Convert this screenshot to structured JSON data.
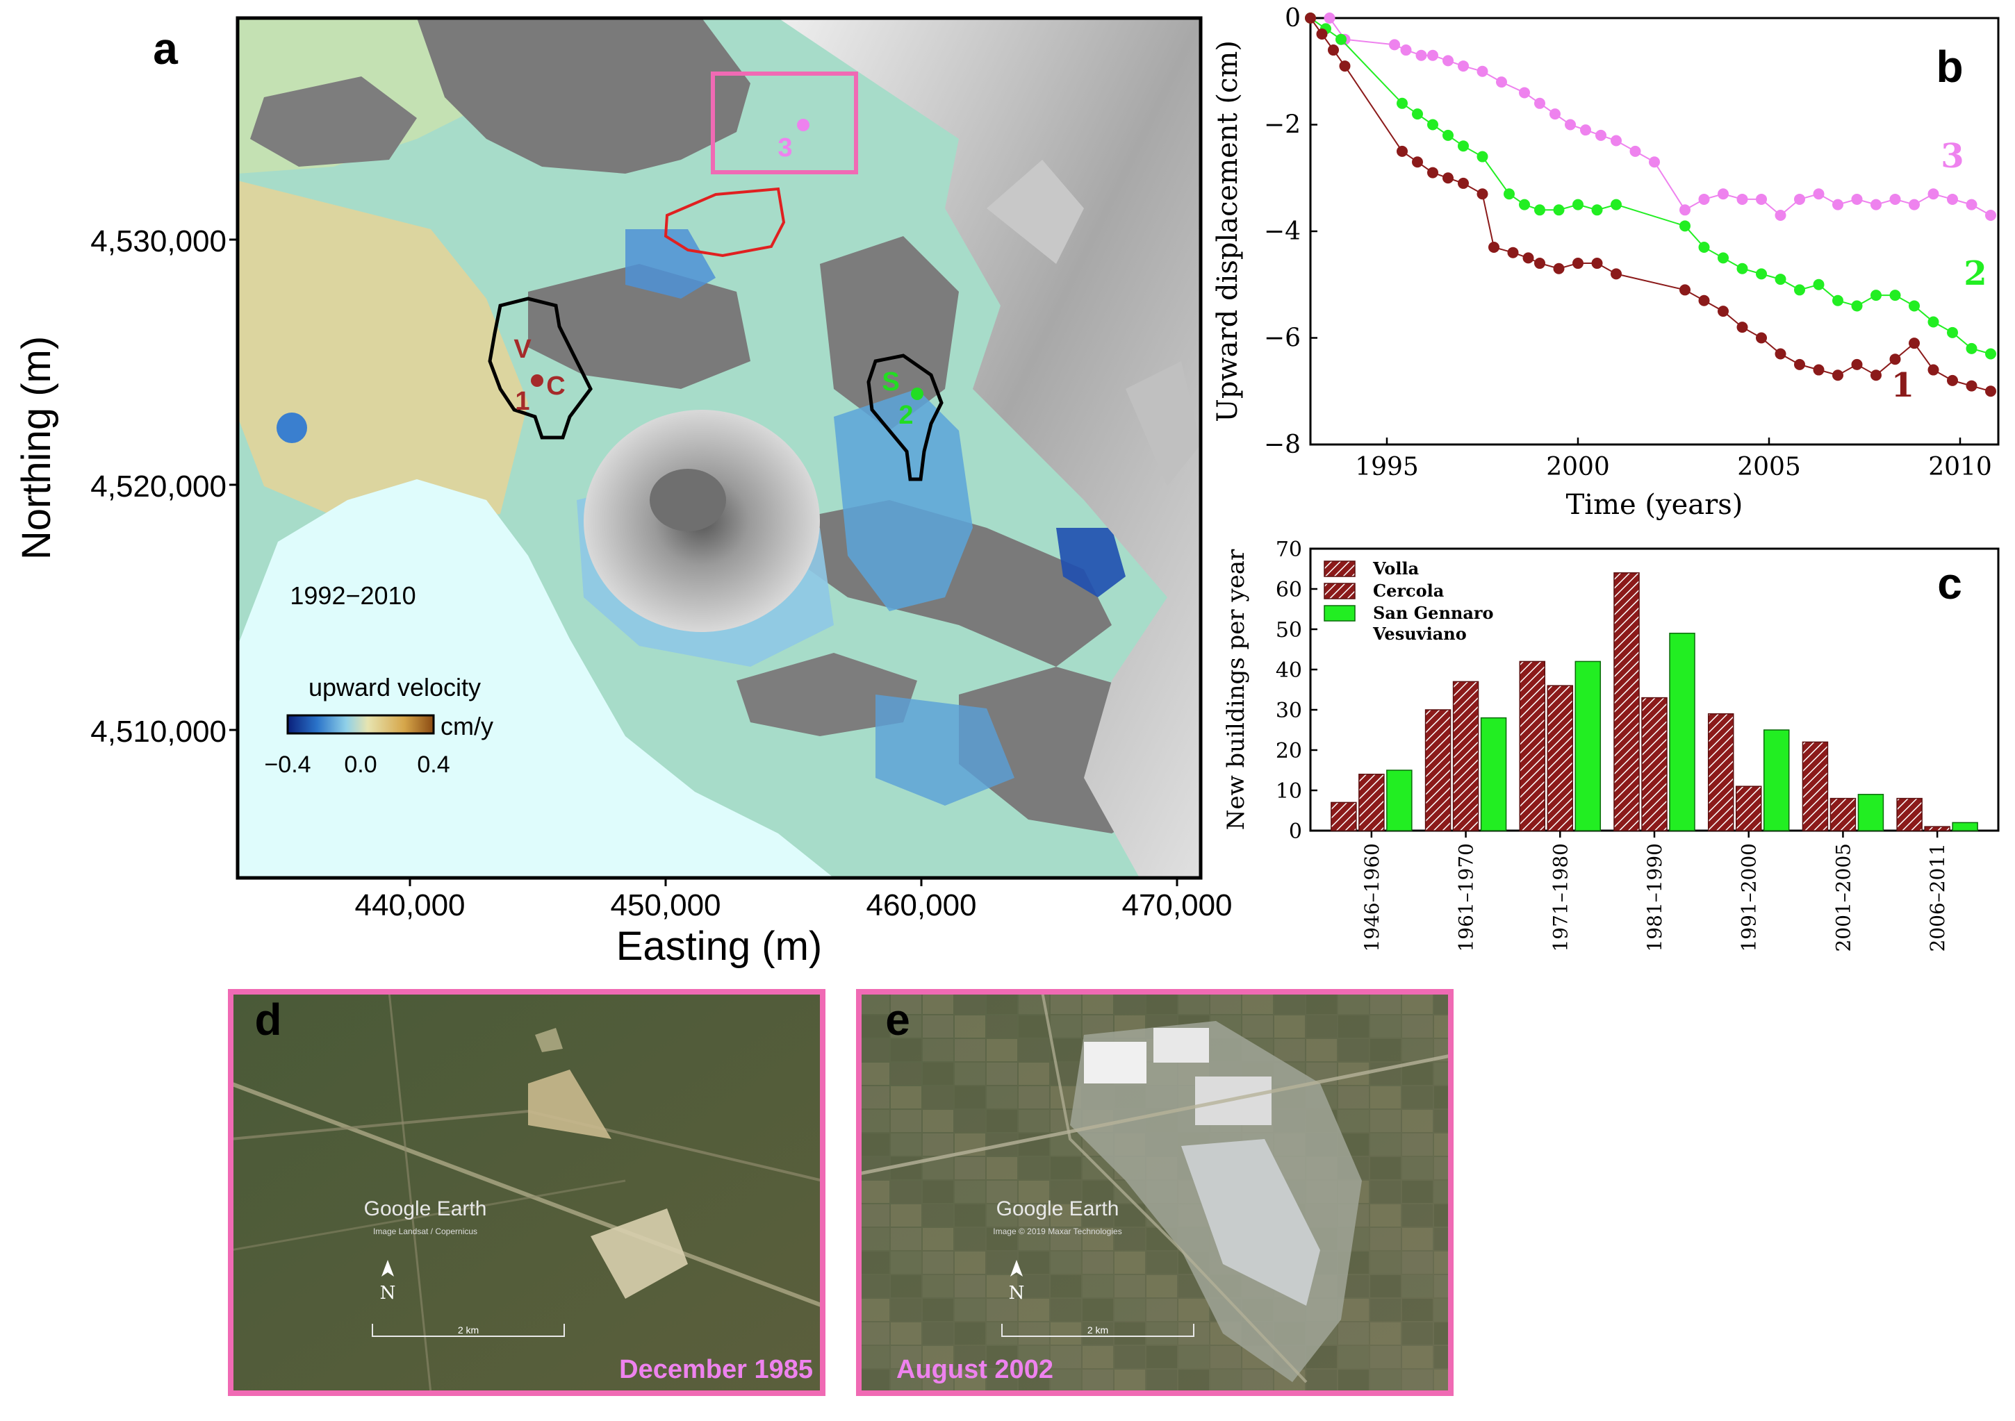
{
  "panels": {
    "a": {
      "letter": "a",
      "period": "1992−2010",
      "xlabel": "Easting (m)",
      "ylabel": "Northing (m)",
      "xticks": [
        "440,000",
        "450,000",
        "460,000",
        "470,000"
      ],
      "yticks": [
        "4,530,000",
        "4,520,000",
        "4,510,000"
      ],
      "colorbar": {
        "title": "upward velocity",
        "unit": "cm/y",
        "ticks": [
          "−0.4",
          "0.0",
          "0.4"
        ],
        "colors": [
          "#0a1f7a",
          "#2a73c9",
          "#8fd0e8",
          "#e7e4b0",
          "#d6a64a",
          "#8a4a12"
        ]
      },
      "labels": {
        "v": "V",
        "c": "C",
        "one": "1",
        "s": "S",
        "two": "2",
        "three": "3"
      },
      "colors": {
        "site1": "#a52a2a",
        "site2": "#22dd22",
        "site3": "#ee82ee",
        "box": "#f06ab4",
        "red_outline": "#e02020",
        "sea": "#dffcfc"
      }
    },
    "b": {
      "letter": "b",
      "chart_data": {
        "type": "line",
        "xlabel": "Time (years)",
        "ylabel": "Upward displacement (cm)",
        "xlim": [
          1993,
          2011
        ],
        "ylim": [
          -8,
          0
        ],
        "xticks": [
          "1995",
          "2000",
          "2005",
          "2010"
        ],
        "yticks": [
          "0",
          "−2",
          "−4",
          "−6",
          "−8"
        ],
        "series": [
          {
            "name": "3",
            "color": "#ee82ee",
            "x": [
              1993.5,
              1993.9,
              1995.2,
              1995.5,
              1995.9,
              1996.2,
              1996.6,
              1997.0,
              1997.5,
              1998.0,
              1998.6,
              1999.0,
              1999.4,
              1999.8,
              2000.2,
              2000.6,
              2001.0,
              2001.5,
              2002.0,
              2002.8,
              2003.3,
              2003.8,
              2004.3,
              2004.8,
              2005.3,
              2005.8,
              2006.3,
              2006.8,
              2007.3,
              2007.8,
              2008.3,
              2008.8,
              2009.3,
              2009.8,
              2010.3,
              2010.8
            ],
            "y": [
              0.0,
              -0.4,
              -0.5,
              -0.6,
              -0.7,
              -0.7,
              -0.8,
              -0.9,
              -1.0,
              -1.2,
              -1.4,
              -1.6,
              -1.8,
              -2.0,
              -2.1,
              -2.2,
              -2.3,
              -2.5,
              -2.7,
              -3.6,
              -3.4,
              -3.3,
              -3.4,
              -3.4,
              -3.7,
              -3.4,
              -3.3,
              -3.5,
              -3.4,
              -3.5,
              -3.4,
              -3.5,
              -3.3,
              -3.4,
              -3.5,
              -3.7
            ]
          },
          {
            "name": "2",
            "color": "#22ee22",
            "x": [
              1993.0,
              1993.4,
              1993.8,
              1995.4,
              1995.8,
              1996.2,
              1996.6,
              1997.0,
              1997.5,
              1998.2,
              1998.6,
              1999.0,
              1999.5,
              2000.0,
              2000.5,
              2001.0,
              2002.8,
              2003.3,
              2003.8,
              2004.3,
              2004.8,
              2005.3,
              2005.8,
              2006.3,
              2006.8,
              2007.3,
              2007.8,
              2008.3,
              2008.8,
              2009.3,
              2009.8,
              2010.3,
              2010.8
            ],
            "y": [
              0.0,
              -0.2,
              -0.4,
              -1.6,
              -1.8,
              -2.0,
              -2.2,
              -2.4,
              -2.6,
              -3.3,
              -3.5,
              -3.6,
              -3.6,
              -3.5,
              -3.6,
              -3.5,
              -3.9,
              -4.3,
              -4.5,
              -4.7,
              -4.8,
              -4.9,
              -5.1,
              -5.0,
              -5.3,
              -5.4,
              -5.2,
              -5.2,
              -5.4,
              -5.7,
              -5.9,
              -6.2,
              -6.3
            ]
          },
          {
            "name": "1",
            "color": "#8b1a1a",
            "x": [
              1993.0,
              1993.3,
              1993.6,
              1993.9,
              1995.4,
              1995.8,
              1996.2,
              1996.6,
              1997.0,
              1997.5,
              1997.8,
              1998.3,
              1998.7,
              1999.0,
              1999.5,
              2000.0,
              2000.5,
              2001.0,
              2002.8,
              2003.3,
              2003.8,
              2004.3,
              2004.8,
              2005.3,
              2005.8,
              2006.3,
              2006.8,
              2007.3,
              2007.8,
              2008.3,
              2008.8,
              2009.3,
              2009.8,
              2010.3,
              2010.8
            ],
            "y": [
              0.0,
              -0.3,
              -0.6,
              -0.9,
              -2.5,
              -2.7,
              -2.9,
              -3.0,
              -3.1,
              -3.3,
              -4.3,
              -4.4,
              -4.5,
              -4.6,
              -4.7,
              -4.6,
              -4.6,
              -4.8,
              -5.1,
              -5.3,
              -5.5,
              -5.8,
              -6.0,
              -6.3,
              -6.5,
              -6.6,
              -6.7,
              -6.5,
              -6.7,
              -6.4,
              -6.1,
              -6.6,
              -6.8,
              -6.9,
              -7.0
            ]
          }
        ],
        "series_labels": [
          {
            "text": "3",
            "x": 2009.8,
            "y": -2.8
          },
          {
            "text": "2",
            "x": 2010.4,
            "y": -5.0
          },
          {
            "text": "1",
            "x": 2008.5,
            "y": -7.1
          }
        ]
      }
    },
    "c": {
      "letter": "c",
      "chart_data": {
        "type": "bar",
        "ylabel": "New buildings per year",
        "ylim": [
          0,
          70
        ],
        "yticks": [
          "0",
          "10",
          "20",
          "30",
          "40",
          "50",
          "60",
          "70"
        ],
        "categories": [
          "1946–1960",
          "1961–1970",
          "1971–1980",
          "1981–1990",
          "1991–2000",
          "2001–2005",
          "2006–2011"
        ],
        "series": [
          {
            "name": "Volla",
            "color": "#8b1a1a",
            "hatched": true,
            "values": [
              7,
              30,
              42,
              64,
              29,
              22,
              8
            ]
          },
          {
            "name": "Cercola",
            "color": "#8b1a1a",
            "hatched": true,
            "values": [
              14,
              37,
              36,
              33,
              11,
              8,
              1
            ]
          },
          {
            "name": "San Gennaro\nVesuviano",
            "color": "#22ee22",
            "hatched": false,
            "values": [
              15,
              28,
              42,
              49,
              25,
              9,
              2
            ]
          }
        ]
      }
    },
    "d": {
      "letter": "d",
      "caption": "December 1985",
      "watermark": "Google Earth",
      "credit": "Image Landsat / Copernicus",
      "north": "N",
      "scale": "2 km"
    },
    "e": {
      "letter": "e",
      "caption": "August 2002",
      "watermark": "Google Earth",
      "credit": "Image © 2019 Maxar Technologies",
      "north": "N",
      "scale": "2 km"
    }
  }
}
